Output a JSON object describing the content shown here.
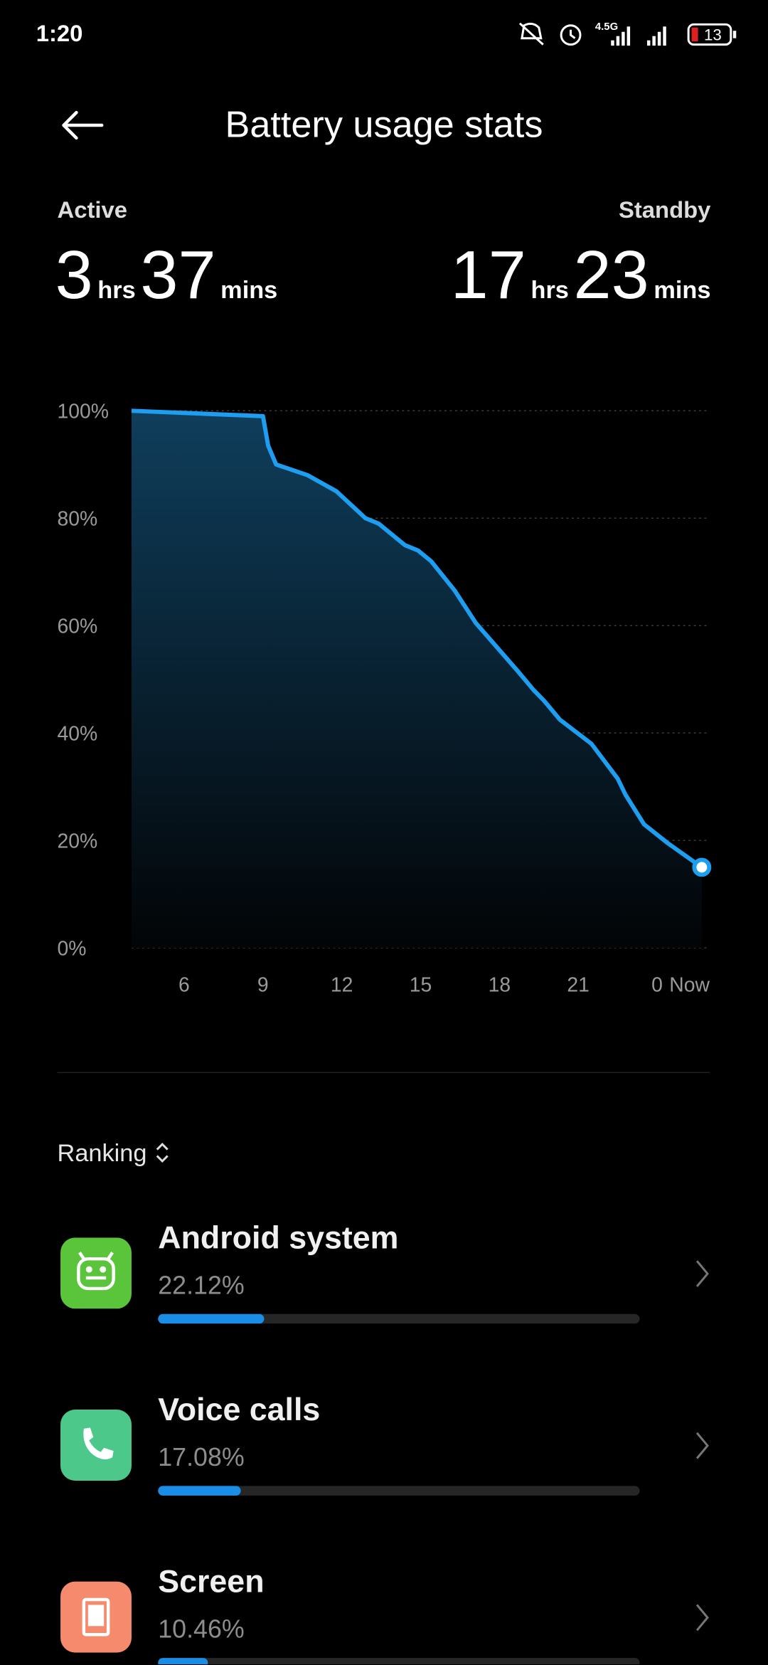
{
  "status_bar": {
    "time": "1:20",
    "network": "4.5G",
    "battery": 13
  },
  "header": {
    "title": "Battery usage stats"
  },
  "summary": {
    "active": {
      "label": "Active",
      "hours": 3,
      "hours_unit": "hrs",
      "minutes": 37,
      "minutes_unit": "mins"
    },
    "standby": {
      "label": "Standby",
      "hours": 17,
      "hours_unit": "hrs",
      "minutes": 23,
      "minutes_unit": "mins"
    }
  },
  "chart_data": {
    "type": "area",
    "x": [
      4,
      9,
      9.2,
      9.5,
      10.7,
      11.8,
      12.9,
      13.4,
      14.4,
      14.9,
      15.4,
      16.3,
      17.1,
      18.7,
      19.3,
      19.7,
      20.3,
      21.5,
      22.5,
      22.8,
      23.5,
      24.4,
      25.7
    ],
    "values": [
      100,
      99,
      93.5,
      90,
      88,
      85,
      80,
      79,
      75,
      74,
      72,
      66.5,
      60.5,
      51.5,
      48,
      46,
      42.5,
      38,
      31.5,
      28.5,
      23,
      19.5,
      15
    ],
    "xlim": [
      4,
      26
    ],
    "ylim": [
      0,
      100
    ],
    "xticks": [
      6,
      9,
      12,
      15,
      18,
      21,
      {
        "value": 24,
        "label": "0"
      }
    ],
    "yticks": [
      {
        "value": 0,
        "label": "0%"
      },
      {
        "value": 20,
        "label": "20%"
      },
      {
        "value": 40,
        "label": "40%"
      },
      {
        "value": 60,
        "label": "60%"
      },
      {
        "value": 80,
        "label": "80%"
      },
      {
        "value": 100,
        "label": "100%"
      }
    ],
    "end_label": "Now",
    "color": "#1e9ef0",
    "grid": true
  },
  "ranking": {
    "label": "Ranking",
    "items": [
      {
        "name": "Android system",
        "value": 22.12,
        "value_label": "22.12%"
      },
      {
        "name": "Voice calls",
        "value": 17.08,
        "value_label": "17.08%"
      },
      {
        "name": "Screen",
        "value": 10.46,
        "value_label": "10.46%"
      }
    ]
  }
}
